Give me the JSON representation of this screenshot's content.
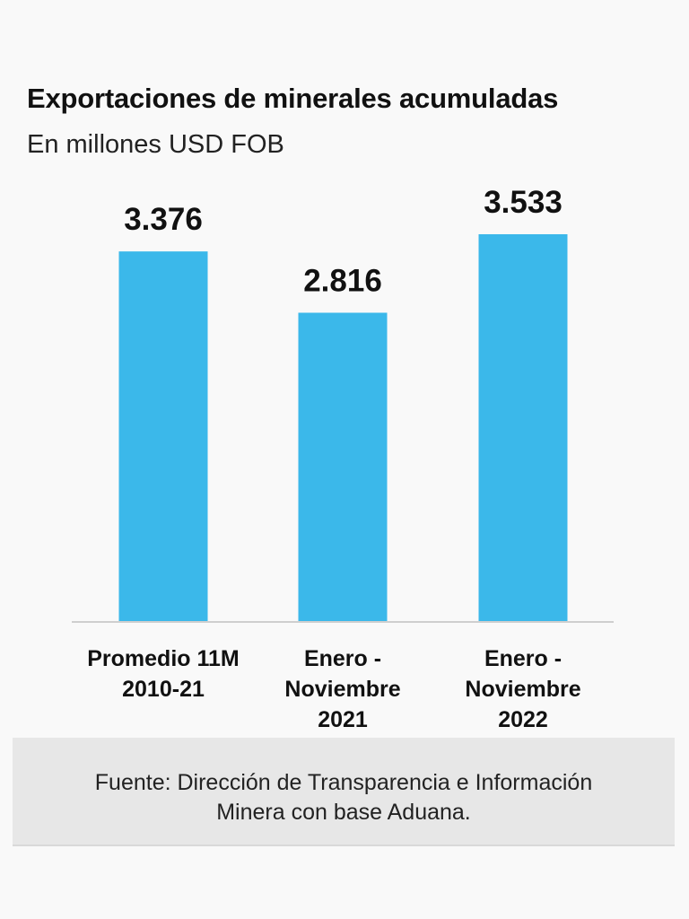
{
  "chart_data": {
    "type": "bar",
    "title": "Exportaciones de minerales acumuladas",
    "subtitle": "En millones USD FOB",
    "categories": [
      [
        "Promedio 11M",
        "2010-21"
      ],
      [
        "Enero -",
        "Noviembre",
        "2021"
      ],
      [
        "Enero -",
        "Noviembre",
        "2022"
      ]
    ],
    "values": [
      3376,
      2816,
      3533
    ],
    "value_labels": [
      "3.376",
      "2.816",
      "3.533"
    ],
    "ylim": [
      0,
      3533
    ],
    "xlabel": "",
    "ylabel": "",
    "grid": false,
    "bar_color": "#3bb8ea",
    "axis_color": "#cfcfcf"
  },
  "footer": {
    "line1": "Fuente: Dirección de Transparencia e Información",
    "line2": "Minera con base Aduana."
  }
}
